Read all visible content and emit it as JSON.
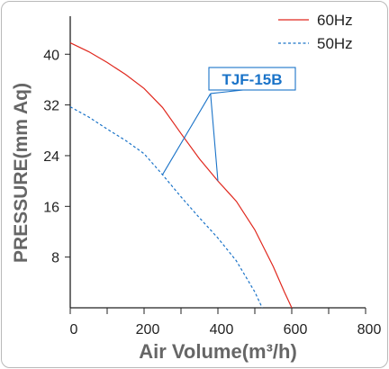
{
  "chart_data": {
    "type": "line",
    "xlabel": "Air Volume(m³/h)",
    "ylabel": "PRESSURE(mm Aq)",
    "xlim": [
      0,
      800
    ],
    "ylim": [
      0,
      46
    ],
    "x_ticks": [
      "0",
      "200",
      "400",
      "600",
      "800"
    ],
    "y_ticks": [
      "8",
      "16",
      "24",
      "32",
      "40"
    ],
    "grid": false,
    "legend_position": "top-right",
    "annotation": "TJF-15B",
    "colors": {
      "60Hz": "#e0281e",
      "50Hz": "#1a73c8",
      "annotation": "#1a73c8"
    },
    "series": [
      {
        "name": "60Hz",
        "style": "solid",
        "x": [
          0,
          50,
          100,
          150,
          200,
          250,
          300,
          350,
          400,
          450,
          500,
          550,
          580,
          600
        ],
        "y": [
          41.8,
          40.4,
          38.7,
          36.8,
          34.6,
          31.6,
          27.5,
          23.5,
          20.0,
          16.8,
          12.3,
          6.5,
          2.5,
          0
        ]
      },
      {
        "name": "50Hz",
        "style": "dashed",
        "x": [
          0,
          50,
          100,
          150,
          200,
          250,
          300,
          350,
          400,
          450,
          500,
          520
        ],
        "y": [
          31.7,
          30.1,
          28.2,
          26.4,
          24.3,
          21.0,
          17.5,
          14.2,
          11.0,
          7.4,
          2.5,
          0
        ]
      }
    ]
  }
}
